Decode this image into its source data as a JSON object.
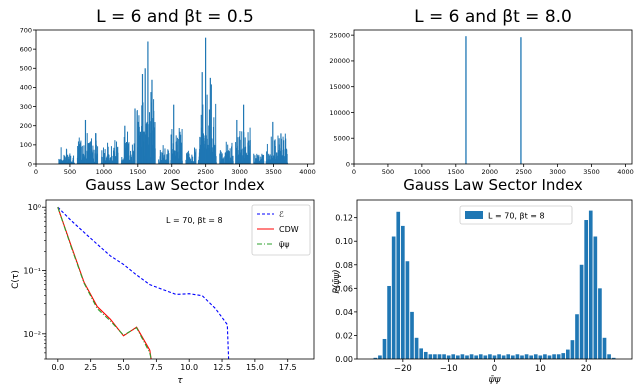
{
  "chart_data": [
    {
      "type": "bar",
      "title": "L = 6 and βt = 0.5",
      "xlabel": "Gauss Law Sector Index",
      "ylabel": "",
      "xlim": [
        0,
        4096
      ],
      "ylim": [
        0,
        700
      ],
      "xticks": [
        "0",
        "500",
        "1000",
        "1500",
        "2000",
        "2500",
        "3000",
        "3500",
        "4000"
      ],
      "yticks": [
        "0",
        "100",
        "200",
        "300",
        "400",
        "500",
        "600",
        "700"
      ],
      "color": "#1f77b4",
      "description": "histogram of sector occupation counts; values approximate (clusters around 1600 and 2500)",
      "peaks": [
        {
          "x": 1560,
          "value": 470
        },
        {
          "x": 1600,
          "value": 500
        },
        {
          "x": 1640,
          "value": 640
        },
        {
          "x": 1700,
          "value": 440
        },
        {
          "x": 2490,
          "value": 660
        },
        {
          "x": 2440,
          "value": 480
        },
        {
          "x": 2560,
          "value": 450
        },
        {
          "x": 2020,
          "value": 310
        },
        {
          "x": 3050,
          "value": 310
        },
        {
          "x": 720,
          "value": 230
        },
        {
          "x": 3480,
          "value": 220
        },
        {
          "x": 1300,
          "value": 200
        },
        {
          "x": 1450,
          "value": 290
        },
        {
          "x": 2950,
          "value": 230
        },
        {
          "x": 3600,
          "value": 160
        }
      ]
    },
    {
      "type": "bar",
      "title": "L = 6 and βt = 8.0",
      "xlabel": "Gauss Law Sector Index",
      "ylabel": "",
      "xlim": [
        0,
        4096
      ],
      "ylim": [
        0,
        26000
      ],
      "xticks": [
        "0",
        "500",
        "1000",
        "1500",
        "2000",
        "2500",
        "3000",
        "3500",
        "4000"
      ],
      "yticks": [
        "0",
        "5000",
        "10000",
        "15000",
        "20000",
        "25000"
      ],
      "color": "#1f77b4",
      "bars": [
        {
          "x": 1640,
          "value": 24800
        },
        {
          "x": 2450,
          "value": 24600
        }
      ]
    },
    {
      "type": "line",
      "annotation": "L = 70, βt = 8",
      "xlabel": "τ",
      "ylabel": "C(τ)",
      "yscale": "log",
      "xlim": [
        -0.9,
        19.5
      ],
      "ylim": [
        0.004,
        1.3
      ],
      "xticks": [
        "0.0",
        "2.5",
        "5.0",
        "7.5",
        "10.0",
        "12.5",
        "15.0",
        "17.5"
      ],
      "yticks": [
        "10⁻²",
        "10⁻¹",
        "10⁰"
      ],
      "legend_position": "top-right",
      "series": [
        {
          "name": "ℰ",
          "color": "#0000ff",
          "dash": "dashed",
          "x": [
            0,
            1,
            2,
            3,
            4,
            5,
            6,
            7,
            8,
            9,
            10,
            11,
            12,
            12.9,
            13
          ],
          "y": [
            1.0,
            0.62,
            0.4,
            0.26,
            0.17,
            0.125,
            0.085,
            0.06,
            0.05,
            0.042,
            0.043,
            0.04,
            0.025,
            0.014,
            0.004
          ]
        },
        {
          "name": "CDW",
          "color": "#ff0000",
          "dash": "solid",
          "x": [
            0,
            1,
            2,
            3,
            4,
            5,
            6,
            7,
            7.1
          ],
          "y": [
            1.0,
            0.25,
            0.065,
            0.027,
            0.017,
            0.0093,
            0.0127,
            0.0055,
            0.004
          ]
        },
        {
          "name": "ψ̄ψ",
          "color": "#2ca02c",
          "dash": "dashdot",
          "x": [
            0,
            1,
            2,
            3,
            4,
            5,
            6,
            7,
            7.1
          ],
          "y": [
            1.0,
            0.24,
            0.063,
            0.025,
            0.016,
            0.0095,
            0.0125,
            0.005,
            0.004
          ]
        }
      ]
    },
    {
      "type": "bar",
      "xlabel": "ψ̄ψ",
      "ylabel": "P(ψ̄ψ)",
      "xlim": [
        -30,
        30
      ],
      "ylim": [
        0,
        0.135
      ],
      "xticks": [
        "−20",
        "−10",
        "0",
        "10",
        "20"
      ],
      "yticks": [
        "0.00",
        "0.02",
        "0.04",
        "0.06",
        "0.08",
        "0.10",
        "0.12"
      ],
      "legend": "L = 70, βt = 8",
      "legend_position": "top-center",
      "color": "#1f77b4",
      "x": [
        -26,
        -25,
        -24,
        -23,
        -22,
        -21,
        -20,
        -19,
        -18,
        -17,
        -16,
        -15,
        -14,
        -13,
        -12,
        -11,
        -10,
        -9,
        -8,
        -7,
        -6,
        -5,
        -4,
        -3,
        -2,
        -1,
        0,
        1,
        2,
        3,
        4,
        5,
        6,
        7,
        8,
        9,
        10,
        11,
        12,
        13,
        14,
        15,
        16,
        17,
        18,
        19,
        20,
        21,
        22,
        23,
        24,
        25,
        26
      ],
      "values": [
        0.001,
        0.003,
        0.017,
        0.062,
        0.104,
        0.125,
        0.113,
        0.083,
        0.04,
        0.018,
        0.009,
        0.006,
        0.004,
        0.004,
        0.004,
        0.004,
        0.003,
        0.004,
        0.003,
        0.004,
        0.003,
        0.004,
        0.003,
        0.004,
        0.003,
        0.004,
        0.003,
        0.004,
        0.003,
        0.004,
        0.003,
        0.004,
        0.003,
        0.004,
        0.003,
        0.004,
        0.003,
        0.004,
        0.003,
        0.004,
        0.004,
        0.005,
        0.008,
        0.016,
        0.038,
        0.08,
        0.118,
        0.126,
        0.104,
        0.06,
        0.018,
        0.004,
        0.001
      ]
    }
  ]
}
